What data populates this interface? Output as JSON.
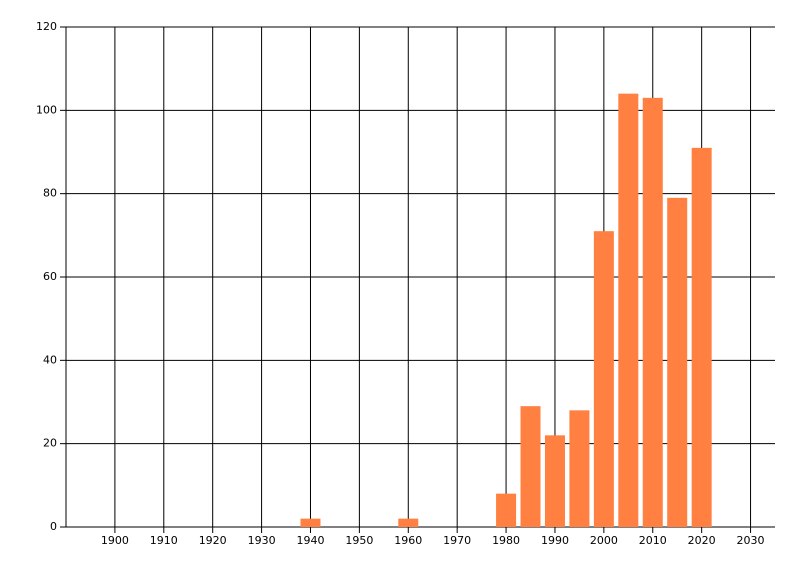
{
  "chart_data": {
    "type": "bar",
    "x": [
      1940,
      1960,
      1980,
      1985,
      1990,
      1995,
      2000,
      2005,
      2010,
      2015,
      2020
    ],
    "values": [
      2,
      2,
      8,
      29,
      22,
      28,
      71,
      104,
      103,
      79,
      91
    ],
    "color": "#ff8040",
    "xlim": [
      1890,
      2035
    ],
    "xticks": [
      1900,
      1910,
      1920,
      1930,
      1940,
      1950,
      1960,
      1970,
      1980,
      1990,
      2000,
      2010,
      2020,
      2030
    ],
    "ylim": [
      0,
      120
    ],
    "yticks": [
      0,
      20,
      40,
      60,
      80,
      100,
      120
    ],
    "grid": true
  }
}
